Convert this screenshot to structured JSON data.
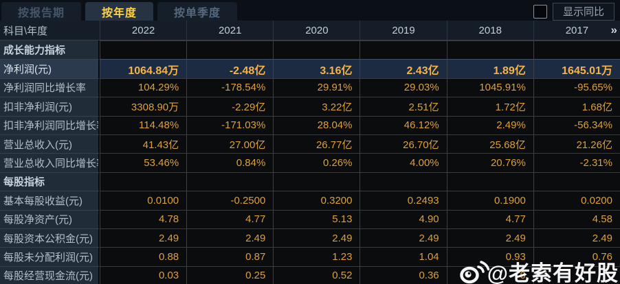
{
  "tabs": [
    {
      "label": "按报告期",
      "active": false
    },
    {
      "label": "按年度",
      "active": true
    },
    {
      "label": "按单季度",
      "active": false
    }
  ],
  "controls": {
    "show_yoy_label": "显示同比",
    "checkbox_checked": false
  },
  "table": {
    "corner_label": "科目\\年度",
    "years": [
      "2022",
      "2021",
      "2020",
      "2019",
      "2018",
      "2017"
    ],
    "more_icon": "»",
    "rows": [
      {
        "type": "section",
        "label": "成长能力指标",
        "values": [
          "",
          "",
          "",
          "",
          "",
          ""
        ]
      },
      {
        "type": "data",
        "highlight": true,
        "label": "净利润(元)",
        "values": [
          "1064.84万",
          "-2.48亿",
          "3.16亿",
          "2.43亿",
          "1.89亿",
          "1645.01万"
        ]
      },
      {
        "type": "data",
        "label": "净利润同比增长率",
        "values": [
          "104.29%",
          "-178.54%",
          "29.91%",
          "29.03%",
          "1045.91%",
          "-95.65%"
        ]
      },
      {
        "type": "data",
        "label": "扣非净利润(元)",
        "values": [
          "3308.90万",
          "-2.29亿",
          "3.22亿",
          "2.51亿",
          "1.72亿",
          "1.68亿"
        ]
      },
      {
        "type": "data",
        "label": "扣非净利润同比增长率",
        "values": [
          "114.48%",
          "-171.03%",
          "28.04%",
          "46.12%",
          "2.49%",
          "-56.34%"
        ]
      },
      {
        "type": "data",
        "label": "营业总收入(元)",
        "values": [
          "41.43亿",
          "27.00亿",
          "26.77亿",
          "26.70亿",
          "25.68亿",
          "21.26亿"
        ]
      },
      {
        "type": "data",
        "label": "营业总收入同比增长率",
        "values": [
          "53.46%",
          "0.84%",
          "0.26%",
          "4.00%",
          "20.76%",
          "-2.31%"
        ]
      },
      {
        "type": "section",
        "label": "每股指标",
        "values": [
          "",
          "",
          "",
          "",
          "",
          ""
        ]
      },
      {
        "type": "data",
        "label": "基本每股收益(元)",
        "values": [
          "0.0100",
          "-0.2500",
          "0.3200",
          "0.2493",
          "0.1900",
          "0.0200"
        ]
      },
      {
        "type": "data",
        "label": "每股净资产(元)",
        "values": [
          "4.78",
          "4.77",
          "5.13",
          "4.90",
          "4.77",
          "4.58"
        ]
      },
      {
        "type": "data",
        "label": "每股资本公积金(元)",
        "values": [
          "2.49",
          "2.49",
          "2.49",
          "2.49",
          "2.49",
          "2.49"
        ]
      },
      {
        "type": "data",
        "label": "每股未分配利润(元)",
        "values": [
          "0.88",
          "0.87",
          "1.23",
          "1.04",
          "0.93",
          "0.76"
        ]
      },
      {
        "type": "data",
        "label": "每股经营现金流(元)",
        "values": [
          "0.03",
          "0.25",
          "0.52",
          "0.36",
          "0",
          ""
        ]
      }
    ]
  },
  "watermark": {
    "icon": "weibo-icon",
    "text": "@老索有好股"
  },
  "colors": {
    "active_tab_text": "#ffd24a",
    "value_text": "#dda03c",
    "highlight_value_text": "#f5b445",
    "highlight_row_bg": "#1d2b42",
    "label_cell_bg": "#212c39",
    "value_cell_bg": "#0b0c0e"
  }
}
